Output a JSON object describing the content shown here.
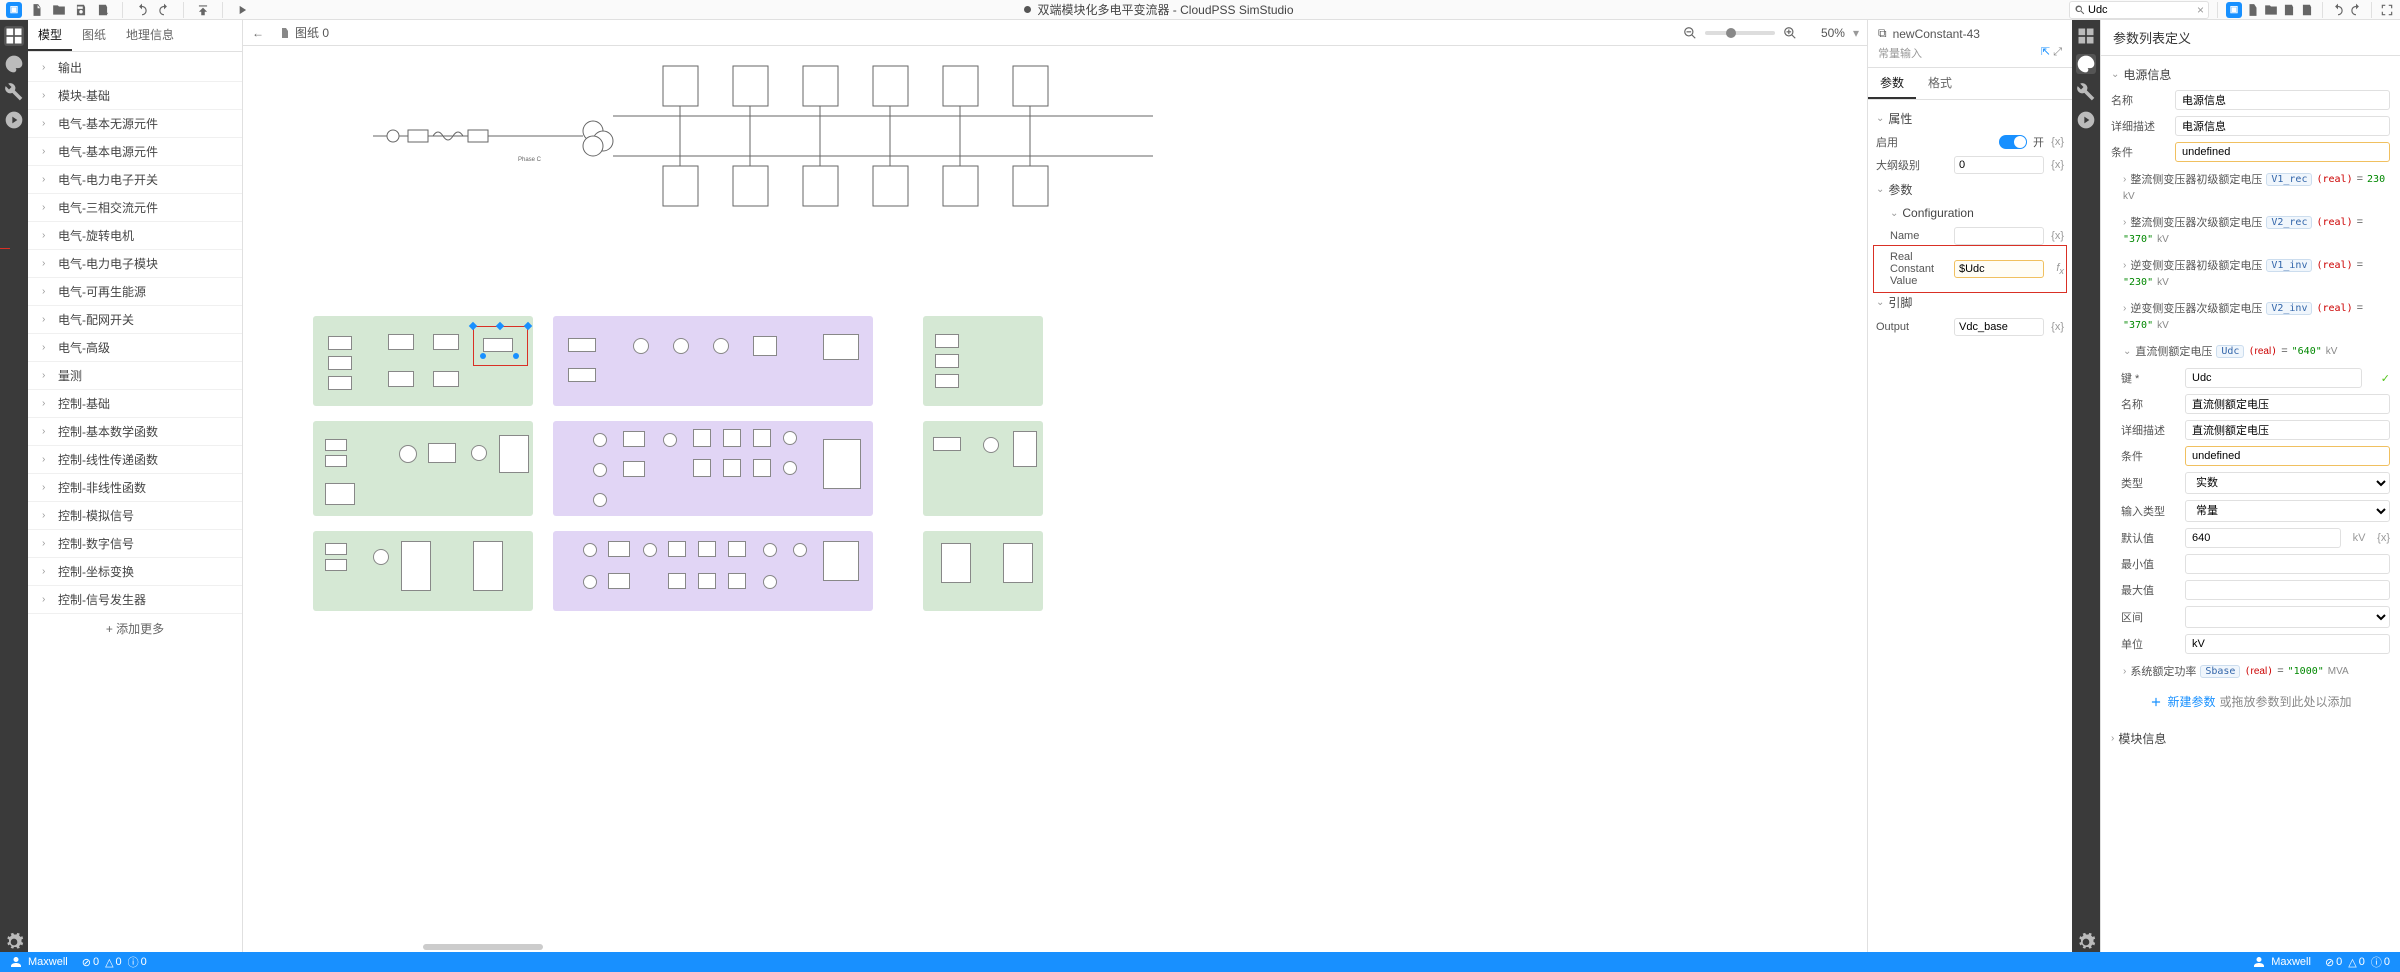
{
  "app": {
    "title": "双端模块化多电平变流器 - CloudPSS SimStudio",
    "modified": true
  },
  "toolbar": {
    "search_value": "Udc",
    "zoom": "50%"
  },
  "left": {
    "tabs": [
      "模型",
      "图纸",
      "地理信息"
    ],
    "active_tab": 0,
    "categories": [
      "输出",
      "模块-基础",
      "电气-基本无源元件",
      "电气-基本电源元件",
      "电气-电力电子开关",
      "电气-三相交流元件",
      "电气-旋转电机",
      "电气-电力电子模块",
      "电气-可再生能源",
      "电气-配网开关",
      "电气-高级",
      "量测",
      "控制-基础",
      "控制-基本数学函数",
      "控制-线性传递函数",
      "控制-非线性函数",
      "控制-模拟信号",
      "控制-数字信号",
      "控制-坐标变换",
      "控制-信号发生器"
    ],
    "add_more": "添加更多"
  },
  "canvas": {
    "page_label": "图纸 0",
    "back_icon_title": "←"
  },
  "inspector": {
    "crumb_icon": "⧉",
    "component": "newConstant-43",
    "subtitle": "常量输入",
    "tabs": [
      "参数",
      "格式"
    ],
    "active_tab": 0,
    "sections": {
      "attrs": {
        "title": "属性",
        "enable_label": "启用",
        "enable_state": "开",
        "outline_label": "大纲级别",
        "outline_value": "0"
      },
      "params": {
        "title": "参数",
        "config_label": "Configuration",
        "name_label": "Name",
        "name_value": "",
        "rcv_label": "Real Constant Value",
        "rcv_value": "$Udc"
      },
      "pins": {
        "title": "引脚",
        "output_label": "Output",
        "output_value": "Vdc_base"
      }
    },
    "x_suffix": "{x}",
    "fx_suffix": "fx"
  },
  "definition": {
    "title": "参数列表定义",
    "group_title": "电源信息",
    "top": {
      "name_label": "名称",
      "name_value": "电源信息",
      "desc_label": "详细描述",
      "desc_value": "电源信息",
      "cond_label": "条件",
      "cond_value": "undefined"
    },
    "params": [
      {
        "label": "整流侧变压器初级额定电压",
        "var": "V1_rec",
        "type": "real",
        "val": "230",
        "unit": "kV",
        "quoted": false
      },
      {
        "label": "整流侧变压器次级额定电压",
        "var": "V2_rec",
        "type": "real",
        "val": "\"370\"",
        "unit": "kV",
        "quoted": true
      },
      {
        "label": "逆变侧变压器初级额定电压",
        "var": "V1_inv",
        "type": "real",
        "val": "\"230\"",
        "unit": "kV",
        "quoted": true
      },
      {
        "label": "逆变侧变压器次级额定电压",
        "var": "V2_inv",
        "type": "real",
        "val": "\"370\"",
        "unit": "kV",
        "quoted": true
      }
    ],
    "selected_param": {
      "header_label": "直流侧额定电压",
      "header_var": "Udc",
      "header_type": "real",
      "header_val": "\"640\"",
      "header_unit": "kV",
      "key_label": "键 *",
      "key_value": "Udc",
      "name_label": "名称",
      "name_value": "直流侧额定电压",
      "desc_label": "详细描述",
      "desc_value": "直流侧额定电压",
      "cond_label": "条件",
      "cond_value": "undefined",
      "type_label": "类型",
      "type_value": "实数",
      "input_type_label": "输入类型",
      "input_type_value": "常量",
      "default_label": "默认值",
      "default_value": "640",
      "default_unit": "kV",
      "min_label": "最小值",
      "min_value": "",
      "max_label": "最大值",
      "max_value": "",
      "range_label": "区间",
      "range_value": "",
      "unit_label": "单位",
      "unit_value": "kV"
    },
    "tail_param": {
      "label": "系统额定功率",
      "var": "Sbase",
      "type": "real",
      "val": "\"1000\"",
      "unit": "MVA"
    },
    "add_label": "新建参数",
    "add_hint": "或拖放参数到此处以添加",
    "module_info": "模块信息"
  },
  "status": {
    "user": "Maxwell",
    "errors": 0,
    "warnings": 0,
    "infos": 0
  },
  "colors": {
    "green_group": "#d5e8d4",
    "purple_group": "#e1d5f5"
  }
}
